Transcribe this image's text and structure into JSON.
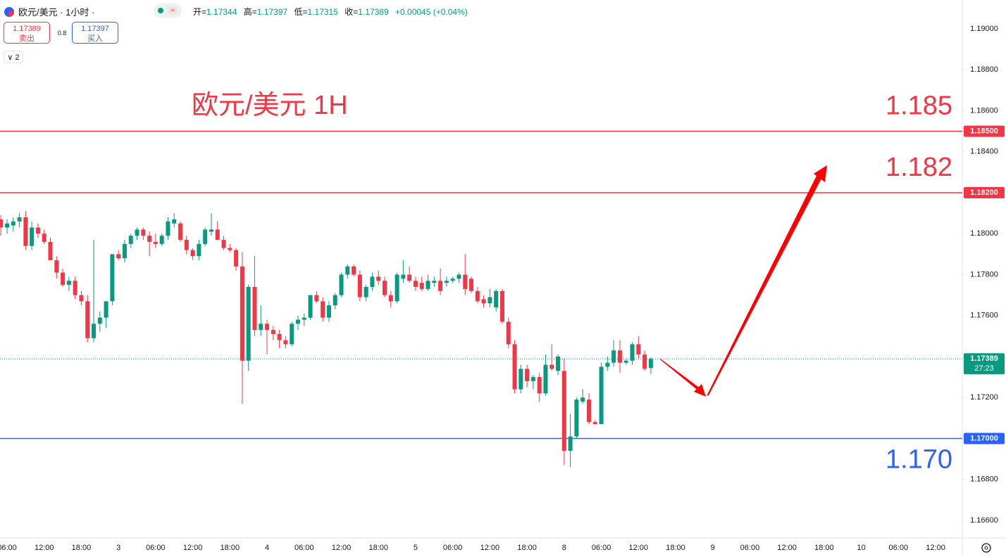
{
  "header": {
    "symbol": "欧元/美元 · 1小时 ·",
    "ohlc": [
      {
        "key": "开=",
        "value": "1.17344"
      },
      {
        "key": "高=",
        "value": "1.17397"
      },
      {
        "key": "低=",
        "value": "1.17315"
      },
      {
        "key": "收=",
        "value": "1.17389"
      }
    ],
    "change": "+0.00045 (+0.04%)",
    "wave": "≈"
  },
  "trade": {
    "sell_price": "1.17389",
    "sell_label": "卖出",
    "spread": "0.8",
    "buy_price": "1.17397",
    "buy_label": "买入"
  },
  "indicators": "2",
  "chart_data": {
    "type": "candlestick",
    "title": "欧元/美元 1H",
    "up_color": "#089981",
    "down_color": "#f23645",
    "grid": false,
    "ylim": [
      1.16514,
      1.19141
    ],
    "yticks": [
      {
        "value": 1.19,
        "label": "1.19000"
      },
      {
        "value": 1.188,
        "label": "1.18800"
      },
      {
        "value": 1.186,
        "label": "1.18600"
      },
      {
        "value": 1.184,
        "label": "1.18400"
      },
      {
        "value": 1.18,
        "label": "1.18000"
      },
      {
        "value": 1.178,
        "label": "1.17800"
      },
      {
        "value": 1.176,
        "label": "1.17600"
      },
      {
        "value": 1.172,
        "label": "1.17200"
      },
      {
        "value": 1.168,
        "label": "1.16800"
      },
      {
        "value": 1.166,
        "label": "1.16600"
      }
    ],
    "levels": [
      {
        "value": 1.185,
        "label": "1.185",
        "axis_label": "1.18500",
        "color": "#f23645"
      },
      {
        "value": 1.182,
        "label": "1.182",
        "axis_label": "1.18200",
        "color": "#f23645"
      },
      {
        "value": 1.17,
        "label": "1.170",
        "axis_label": "1.17000",
        "color": "#2962ff"
      }
    ],
    "last_price": {
      "value": 1.17389,
      "label": "1.17389",
      "countdown": "27:23",
      "color": "#089981"
    },
    "categories": [
      null,
      "06:00",
      null,
      null,
      null,
      null,
      null,
      "12:00",
      null,
      null,
      null,
      null,
      null,
      "18:00",
      null,
      null,
      null,
      null,
      null,
      "3",
      null,
      null,
      null,
      null,
      null,
      "06:00",
      null,
      null,
      null,
      null,
      null,
      "12:00",
      null,
      null,
      null,
      null,
      null,
      "18:00",
      null,
      null,
      null,
      null,
      null,
      "4",
      null,
      null,
      null,
      null,
      null,
      "06:00",
      null,
      null,
      null,
      null,
      null,
      "12:00",
      null,
      null,
      null,
      null,
      null,
      "18:00",
      null,
      null,
      null,
      null,
      null,
      "5",
      null,
      null,
      null,
      null,
      null,
      "06:00",
      null,
      null,
      null,
      null,
      null,
      "12:00",
      null,
      null,
      null,
      null,
      null,
      "18:00",
      null,
      null,
      null,
      null,
      null,
      "8",
      null,
      null,
      null,
      null,
      null,
      "06:00",
      null,
      null,
      null,
      null,
      null,
      "12:00",
      null,
      null,
      null,
      null,
      null,
      "18:00",
      null,
      null,
      null,
      null,
      null,
      "9",
      null,
      null,
      null,
      null,
      null,
      "06:00",
      null,
      null,
      null,
      null,
      null,
      "12:00",
      null,
      null,
      null,
      null,
      null,
      "18:00",
      null,
      null,
      null,
      null,
      null,
      "10",
      null,
      null,
      null,
      null,
      null,
      "06:00",
      null,
      null,
      null,
      null,
      null,
      "12:00"
    ],
    "open": [
      1.1807,
      1.1803,
      1.1804,
      1.1806,
      1.1808,
      1.1794,
      1.1803,
      1.18,
      1.1796,
      1.1787,
      1.1781,
      1.1775,
      1.1777,
      1.177,
      1.1767,
      1.1749,
      1.1756,
      1.1759,
      1.1767,
      1.179,
      1.1788,
      1.1795,
      1.1799,
      1.1802,
      1.1799,
      1.1796,
      1.1795,
      1.1799,
      1.1805,
      1.1805,
      1.1797,
      1.1792,
      1.1789,
      1.1795,
      1.1801,
      1.1802,
      1.1797,
      1.1793,
      1.1792,
      1.1784,
      1.1738,
      1.1774,
      1.1753,
      1.1756,
      1.1753,
      1.1751,
      1.1748,
      1.1746,
      1.1756,
      1.1758,
      1.1759,
      1.177,
      1.1767,
      1.1759,
      1.1765,
      1.177,
      1.178,
      1.1784,
      1.178,
      1.1769,
      1.1774,
      1.1779,
      1.1777,
      1.177,
      1.1767,
      1.1778,
      1.178,
      1.1777,
      1.1776,
      1.1773,
      1.1776,
      1.1777,
      1.1776,
      1.1777,
      1.1778,
      1.178,
      1.1778,
      1.1772,
      1.1768,
      1.1766,
      1.1764,
      1.1772,
      1.1757,
      1.1746,
      1.1724,
      1.1734,
      1.1728,
      1.173,
      1.1722,
      1.1736,
      1.1733,
      1.1733,
      1.1694,
      1.1701,
      1.1718,
      1.1719,
      1.1708,
      1.1707,
      1.1735,
      1.1737,
      1.1743,
      1.1737,
      1.1738,
      1.1746,
      1.1741,
      1.17344,
      null,
      null,
      null,
      null,
      null,
      null,
      null,
      null,
      null,
      null,
      null,
      null,
      null,
      null,
      null,
      null,
      null,
      null,
      null,
      null,
      null,
      null,
      null,
      null,
      null,
      null,
      null,
      null,
      null,
      null,
      null,
      null,
      null,
      null,
      null,
      null,
      null,
      null,
      null,
      null,
      null,
      null,
      null,
      null,
      null,
      null
    ],
    "high": [
      1.1809,
      1.1807,
      1.1808,
      1.181,
      1.1811,
      1.1806,
      1.1805,
      1.1802,
      1.1798,
      1.1789,
      1.1783,
      1.1779,
      1.1779,
      1.1772,
      1.177,
      1.1797,
      1.1762,
      1.1767,
      1.179,
      1.1792,
      1.1797,
      1.18,
      1.1803,
      1.1803,
      1.1801,
      1.18,
      1.18,
      1.1808,
      1.181,
      1.1806,
      1.1799,
      1.1793,
      1.1797,
      1.1803,
      1.181,
      1.1806,
      1.1799,
      1.1795,
      1.1793,
      1.1791,
      1.1775,
      1.1789,
      1.1765,
      1.1758,
      1.1755,
      1.1753,
      1.175,
      1.1757,
      1.176,
      1.1761,
      1.177,
      1.1772,
      1.1769,
      1.1767,
      1.1771,
      1.1781,
      1.1785,
      1.1785,
      1.1782,
      1.1775,
      1.1781,
      1.1782,
      1.1779,
      1.1772,
      1.1781,
      1.1787,
      1.1784,
      1.1779,
      1.1779,
      1.178,
      1.1779,
      1.1783,
      1.1779,
      1.1779,
      1.1781,
      1.179,
      1.1779,
      1.1774,
      1.177,
      1.1773,
      1.1773,
      1.1773,
      1.1759,
      1.1748,
      1.1736,
      1.1736,
      1.1731,
      1.1732,
      1.1741,
      1.1746,
      1.1741,
      1.1739,
      1.1712,
      1.172,
      1.1724,
      1.1722,
      1.1709,
      1.1737,
      1.174,
      1.1748,
      1.1748,
      1.1739,
      1.1747,
      1.175,
      1.1743,
      1.17397,
      null,
      null,
      null,
      null,
      null,
      null,
      null,
      null,
      null,
      null,
      null,
      null,
      null,
      null,
      null,
      null,
      null,
      null,
      null,
      null,
      null,
      null,
      null,
      null,
      null,
      null,
      null,
      null,
      null,
      null,
      null,
      null,
      null,
      null,
      null,
      null,
      null,
      null,
      null,
      null,
      null,
      null,
      null,
      null,
      null,
      null
    ],
    "low": [
      1.1799,
      1.18,
      1.1801,
      1.1803,
      1.1792,
      1.1792,
      1.1798,
      1.1795,
      1.1787,
      1.1778,
      1.1774,
      1.1772,
      1.1768,
      1.1765,
      1.1747,
      1.1747,
      1.1752,
      1.1754,
      1.1765,
      1.1787,
      1.1786,
      1.1793,
      1.1797,
      1.1797,
      1.1789,
      1.1793,
      1.1794,
      1.1797,
      1.1803,
      1.1796,
      1.179,
      1.1787,
      1.1787,
      1.1794,
      1.1799,
      1.1797,
      1.1792,
      1.1791,
      1.1782,
      1.1717,
      1.1733,
      1.175,
      1.175,
      1.1741,
      1.1748,
      1.1744,
      1.1744,
      1.1745,
      1.1753,
      1.1755,
      1.1758,
      1.1766,
      1.1757,
      1.1757,
      1.1763,
      1.1769,
      1.1778,
      1.1779,
      1.1767,
      1.1767,
      1.1772,
      1.1775,
      1.1769,
      1.1764,
      1.1766,
      1.1776,
      1.1776,
      1.1772,
      1.1772,
      1.1772,
      1.1774,
      1.177,
      1.1774,
      1.1776,
      1.1776,
      1.177,
      1.1771,
      1.1766,
      1.1764,
      1.1764,
      1.1762,
      1.1756,
      1.1744,
      1.1722,
      1.1722,
      1.1725,
      1.1724,
      1.1718,
      1.1721,
      1.1733,
      1.1731,
      1.1687,
      1.1686,
      1.17,
      1.1717,
      1.1707,
      1.1707,
      1.1707,
      1.1733,
      1.1735,
      1.1732,
      1.1736,
      1.1736,
      1.1739,
      1.1733,
      1.17315,
      null,
      null,
      null,
      null,
      null,
      null,
      null,
      null,
      null,
      null,
      null,
      null,
      null,
      null,
      null,
      null,
      null,
      null,
      null,
      null,
      null,
      null,
      null,
      null,
      null,
      null,
      null,
      null,
      null,
      null,
      null,
      null,
      null,
      null,
      null,
      null,
      null,
      null,
      null,
      null,
      null,
      null,
      null,
      null,
      null,
      null
    ],
    "close": [
      1.1803,
      1.1805,
      1.1806,
      1.1808,
      1.1794,
      1.1803,
      1.18,
      1.1796,
      1.1787,
      1.1781,
      1.1775,
      1.1777,
      1.177,
      1.1767,
      1.1749,
      1.1756,
      1.1759,
      1.1767,
      1.179,
      1.1788,
      1.1795,
      1.1799,
      1.1802,
      1.1799,
      1.1796,
      1.1795,
      1.1799,
      1.1806,
      1.1807,
      1.1797,
      1.1792,
      1.1789,
      1.1795,
      1.1802,
      1.1802,
      1.1797,
      1.1793,
      1.1792,
      1.1784,
      1.1738,
      1.1774,
      1.1753,
      1.1756,
      1.1753,
      1.1751,
      1.1748,
      1.1746,
      1.1756,
      1.1758,
      1.1759,
      1.177,
      1.1767,
      1.1759,
      1.1765,
      1.177,
      1.178,
      1.1784,
      1.178,
      1.1769,
      1.1774,
      1.1779,
      1.1777,
      1.177,
      1.1767,
      1.178,
      1.178,
      1.1777,
      1.1774,
      1.1773,
      1.1777,
      1.1777,
      1.1772,
      1.1777,
      1.1778,
      1.178,
      1.1773,
      1.1772,
      1.1767,
      1.1766,
      1.1769,
      1.1772,
      1.1757,
      1.1746,
      1.1724,
      1.1734,
      1.1728,
      1.173,
      1.1722,
      1.1736,
      1.1734,
      1.174,
      1.1694,
      1.1701,
      1.1719,
      1.172,
      1.1708,
      1.1707,
      1.1735,
      1.1737,
      1.1743,
      1.1737,
      1.1738,
      1.1746,
      1.1741,
      1.1734,
      1.17389,
      null,
      null,
      null,
      null,
      null,
      null,
      null,
      null,
      null,
      null,
      null,
      null,
      null,
      null,
      null,
      null,
      null,
      null,
      null,
      null,
      null,
      null,
      null,
      null,
      null,
      null,
      null,
      null,
      null,
      null,
      null,
      null,
      null,
      null,
      null,
      null,
      null,
      null,
      null,
      null,
      null,
      null,
      null,
      null,
      null,
      null
    ]
  }
}
